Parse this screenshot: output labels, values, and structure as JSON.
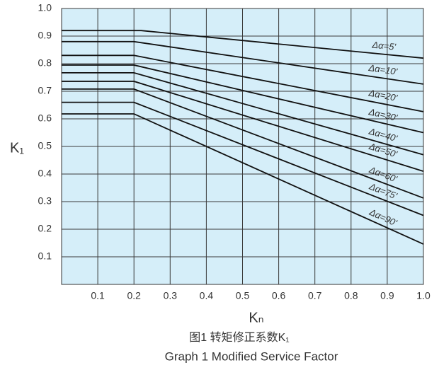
{
  "chart_data": {
    "type": "line",
    "x_label": "Kₙ",
    "y_label": "K₁",
    "caption": [
      "图1  转矩修正系数K₁",
      "Graph 1 Modified Service Factor"
    ],
    "xlim": [
      0,
      1
    ],
    "ylim": [
      0,
      1
    ],
    "xticks": [
      0.1,
      0.2,
      0.3,
      0.4,
      0.5,
      0.6,
      0.7,
      0.8,
      0.9,
      {
        "value": 1,
        "label": "1.0"
      }
    ],
    "yticks": [
      0.1,
      0.2,
      0.3,
      0.4,
      0.5,
      0.6,
      0.7,
      0.8,
      0.9,
      {
        "value": 1,
        "label": "1.0"
      }
    ],
    "grid": true,
    "background": "#d5eef9",
    "color": "#111111",
    "series": [
      {
        "name": "Δα=5'",
        "x": [
          0,
          0.22,
          1
        ],
        "values": [
          0.92,
          0.92,
          0.82
        ]
      },
      {
        "name": "Δα=10'",
        "x": [
          0,
          0.2,
          1
        ],
        "values": [
          0.88,
          0.88,
          0.726
        ]
      },
      {
        "name": "Δα=20'",
        "x": [
          0,
          0.2,
          1
        ],
        "values": [
          0.83,
          0.83,
          0.626
        ]
      },
      {
        "name": "Δα=30'",
        "x": [
          0,
          0.2,
          1
        ],
        "values": [
          0.795,
          0.795,
          0.55
        ]
      },
      {
        "name": "Δα=40'",
        "x": [
          0,
          0.2,
          1
        ],
        "values": [
          0.767,
          0.767,
          0.47
        ]
      },
      {
        "name": "Δα=50'",
        "x": [
          0,
          0.2,
          1
        ],
        "values": [
          0.736,
          0.736,
          0.41
        ]
      },
      {
        "name": "Δα=60'",
        "x": [
          0,
          0.2,
          1
        ],
        "values": [
          0.708,
          0.708,
          0.313
        ]
      },
      {
        "name": "Δα=75'",
        "x": [
          0,
          0.2,
          1
        ],
        "values": [
          0.66,
          0.66,
          0.25
        ]
      },
      {
        "name": "Δα=90'",
        "x": [
          0,
          0.2,
          1
        ],
        "values": [
          0.618,
          0.618,
          0.146
        ]
      }
    ]
  }
}
